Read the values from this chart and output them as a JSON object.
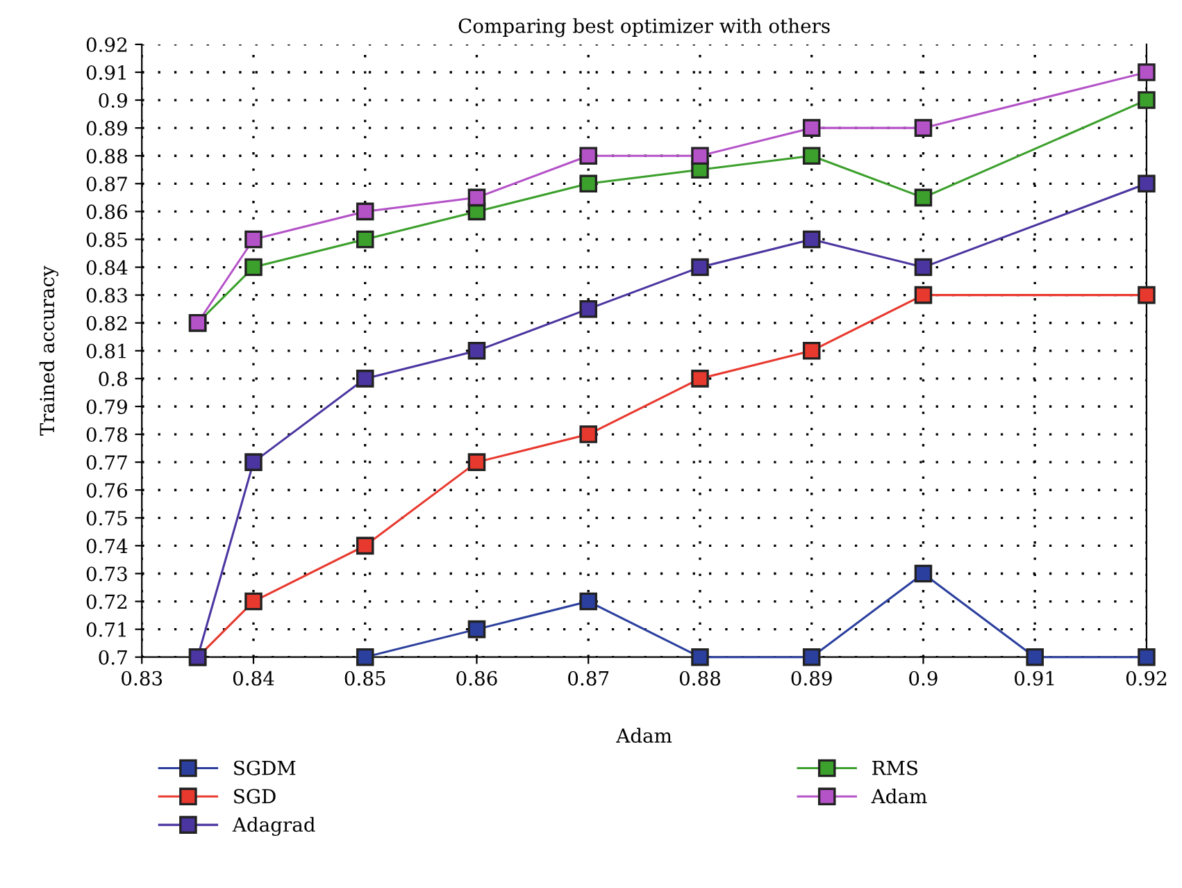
{
  "chart_data": {
    "type": "line",
    "title": "Comparing best optimizer with others",
    "xlabel": "Adam",
    "ylabel": "Trained accuracy",
    "xlim": [
      0.83,
      0.92
    ],
    "xticks": [
      0.83,
      0.84,
      0.85,
      0.86,
      0.87,
      0.88,
      0.89,
      0.9,
      0.91,
      0.92
    ],
    "ylim": [
      0.7,
      0.92
    ],
    "yticks": [
      0.7,
      0.71,
      0.72,
      0.73,
      0.74,
      0.75,
      0.76,
      0.77,
      0.78,
      0.79,
      0.8,
      0.81,
      0.82,
      0.83,
      0.84,
      0.85,
      0.86,
      0.87,
      0.88,
      0.89,
      0.9,
      0.91,
      0.92
    ],
    "grid": true,
    "legend": "bottom",
    "marker": "square",
    "line_style": "solid",
    "series": [
      {
        "name": "SGDM",
        "color": "#2b3f9e",
        "x": [
          0.85,
          0.86,
          0.87,
          0.88,
          0.89,
          0.9,
          0.91,
          0.92
        ],
        "values": [
          0.7,
          0.71,
          0.72,
          0.7,
          0.7,
          0.73,
          0.7,
          0.7
        ]
      },
      {
        "name": "SGD",
        "color": "#e8392f",
        "x": [
          0.835,
          0.84,
          0.85,
          0.86,
          0.87,
          0.88,
          0.89,
          0.9,
          0.92
        ],
        "values": [
          0.7,
          0.72,
          0.74,
          0.77,
          0.78,
          0.8,
          0.81,
          0.83,
          0.83
        ]
      },
      {
        "name": "Adagrad",
        "color": "#4b35a0",
        "x": [
          0.835,
          0.84,
          0.85,
          0.86,
          0.87,
          0.88,
          0.89,
          0.9,
          0.92
        ],
        "values": [
          0.7,
          0.77,
          0.8,
          0.81,
          0.825,
          0.84,
          0.85,
          0.84,
          0.87
        ]
      },
      {
        "name": "RMS",
        "color": "#3ca02c",
        "x": [
          0.835,
          0.84,
          0.85,
          0.86,
          0.87,
          0.88,
          0.89,
          0.9,
          0.92
        ],
        "values": [
          0.82,
          0.84,
          0.85,
          0.86,
          0.87,
          0.875,
          0.88,
          0.865,
          0.9
        ]
      },
      {
        "name": "Adam",
        "color": "#b452c8",
        "x": [
          0.835,
          0.84,
          0.85,
          0.86,
          0.87,
          0.88,
          0.89,
          0.9,
          0.92
        ],
        "values": [
          0.82,
          0.85,
          0.86,
          0.865,
          0.88,
          0.88,
          0.89,
          0.89,
          0.91
        ]
      }
    ]
  }
}
